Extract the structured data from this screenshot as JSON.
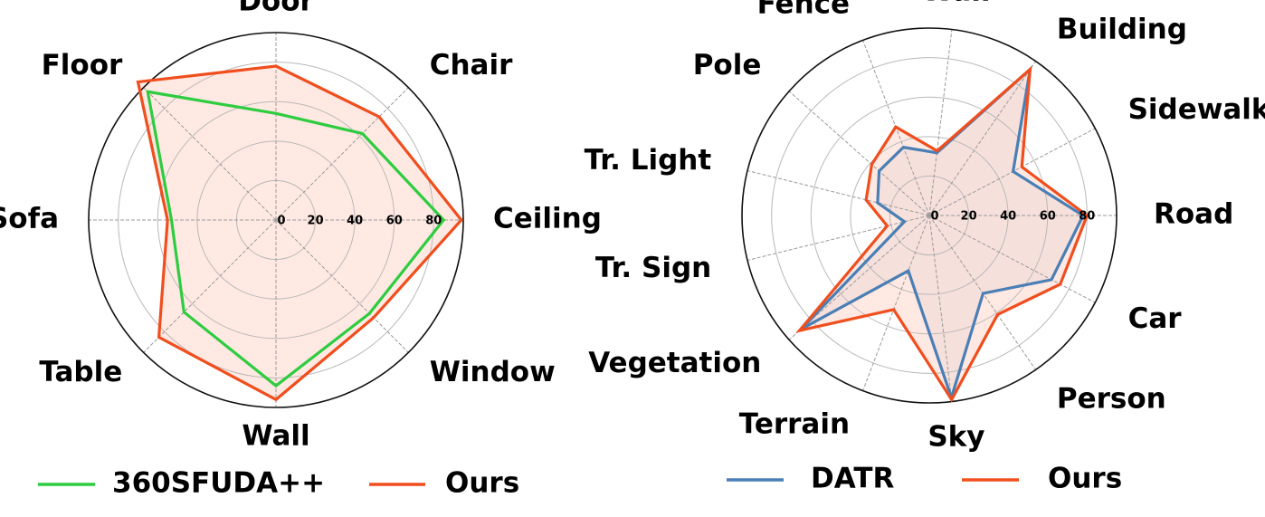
{
  "chart_data": [
    {
      "type": "radar",
      "categories": [
        "Ceiling",
        "Chair",
        "Door",
        "Floor",
        "Sofa",
        "Table",
        "Wall",
        "Window"
      ],
      "radial_ticks": [
        "0",
        "20",
        "40",
        "60",
        "80"
      ],
      "rlim": [
        0,
        95
      ],
      "grid": true,
      "legend": "bottom",
      "series": [
        {
          "name": "360SFUDA++",
          "color": "#2ecc40",
          "fill": false,
          "values": [
            85,
            62,
            54,
            92,
            53,
            66,
            84,
            67
          ]
        },
        {
          "name": "Ours",
          "color": "#f04e1e",
          "fill": true,
          "fill_color": "#ffe0d6",
          "values": [
            94,
            74,
            78,
            99,
            55,
            84,
            91,
            70
          ]
        }
      ]
    },
    {
      "type": "radar",
      "categories": [
        "Road",
        "Sidewalk",
        "Building",
        "Wall",
        "Fence",
        "Pole",
        "Tr. Light",
        "Tr. Sign",
        "Vegetation",
        "Terrain",
        "Sky",
        "Person",
        "Car"
      ],
      "radial_ticks": [
        "0",
        "20",
        "40",
        "60",
        "80"
      ],
      "rlim": [
        0,
        95
      ],
      "grid": true,
      "legend": "bottom",
      "series": [
        {
          "name": "DATR",
          "color": "#4a7fb5",
          "fill": true,
          "fill_color": "#d9dbe8",
          "values": [
            78,
            48,
            90,
            32,
            37,
            34,
            27,
            13,
            87,
            30,
            93,
            48,
            70
          ]
        },
        {
          "name": "Ours",
          "color": "#f04e1e",
          "fill": true,
          "fill_color": "#ffe0d6",
          "values": [
            80,
            53,
            90,
            33,
            48,
            39,
            33,
            22,
            88,
            51,
            94,
            61,
            75
          ]
        }
      ]
    }
  ]
}
